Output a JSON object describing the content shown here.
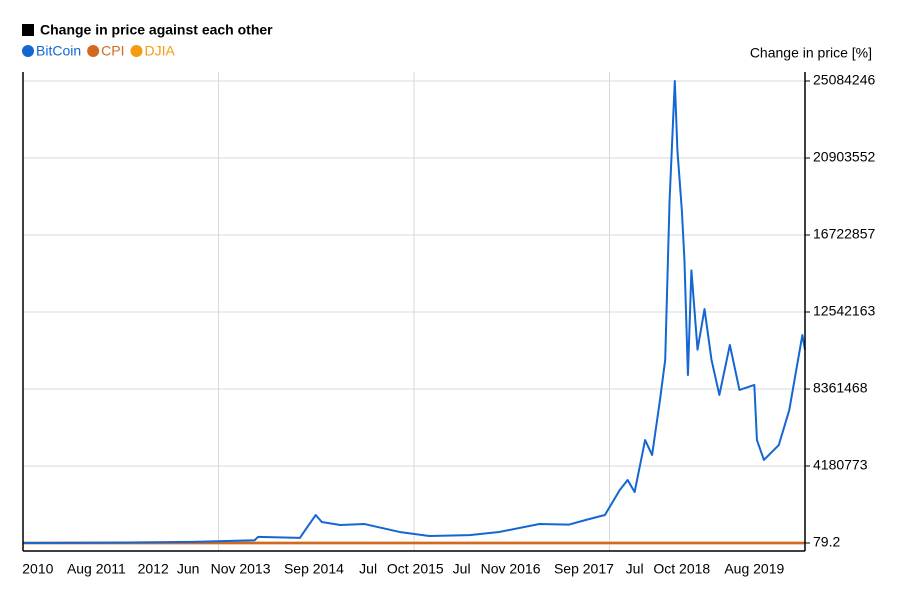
{
  "chart_data": {
    "type": "line",
    "title": "Change in price against each other",
    "y_axis_label": "Change in price [%]",
    "x": [
      2010.55,
      2011.5,
      2012.5,
      2013.2,
      2013.24,
      2013.72,
      2013.78,
      2013.9,
      2013.97,
      2014.18,
      2014.46,
      2014.86,
      2015.2,
      2015.66,
      2016.0,
      2016.46,
      2016.8,
      2016.99,
      2017.21,
      2017.38,
      2017.47,
      2017.55,
      2017.67,
      2017.75,
      2017.84,
      2017.9,
      2017.95,
      2018.01,
      2018.04,
      2018.09,
      2018.12,
      2018.16,
      2018.2,
      2018.27,
      2018.35,
      2018.43,
      2018.52,
      2018.64,
      2018.75,
      2018.92,
      2018.95,
      2019.03,
      2019.2,
      2019.32,
      2019.44,
      2019.47,
      2019.5
    ],
    "series": [
      {
        "name": "BitCoin",
        "color": "#1466d2",
        "values": [
          79.2,
          20000,
          60000,
          150000,
          330000,
          280000,
          700000,
          1520000,
          1140000,
          980000,
          1030000,
          600000,
          380000,
          430000,
          600000,
          1030000,
          1000000,
          1250000,
          1520000,
          2880000,
          3420000,
          2770000,
          5590000,
          4780000,
          7760000,
          9940000,
          18600000,
          25084246,
          21300000,
          18100000,
          15400000,
          9120000,
          14800000,
          10500000,
          12700000,
          9940000,
          8040000,
          10750000,
          8310000,
          8580000,
          5590000,
          4510000,
          5320000,
          7220000,
          10480000,
          11290000,
          10500000
        ]
      },
      {
        "name": "CPI",
        "color": "#d2691e",
        "values": [
          0,
          3,
          5,
          7,
          7,
          8,
          8,
          8,
          8,
          9,
          9,
          9,
          9,
          9,
          10,
          10,
          11,
          11,
          12,
          12,
          12,
          12,
          13,
          13,
          13,
          13,
          13,
          13,
          14,
          14,
          14,
          14,
          14,
          15,
          15,
          15,
          15,
          15,
          16,
          16,
          16,
          16,
          16,
          17,
          17,
          17,
          17
        ]
      },
      {
        "name": "DJIA",
        "color": "#f39c12",
        "values": [
          0,
          20,
          30,
          45,
          45,
          55,
          55,
          60,
          62,
          60,
          65,
          70,
          72,
          60,
          65,
          75,
          80,
          95,
          110,
          115,
          117,
          120,
          125,
          130,
          135,
          140,
          142,
          160,
          150,
          140,
          135,
          130,
          132,
          135,
          140,
          145,
          150,
          155,
          160,
          145,
          135,
          140,
          150,
          155,
          150,
          152,
          155
        ]
      }
    ],
    "xlim": [
      2010.55,
      2019.5
    ],
    "xticks": [
      {
        "value": 2010.72,
        "label": "2010"
      },
      {
        "value": 2011.39,
        "label": "Aug 2011"
      },
      {
        "value": 2012.04,
        "label": "2012"
      },
      {
        "value": 2012.44,
        "label": "Jun"
      },
      {
        "value": 2013.04,
        "label": "Nov 2013"
      },
      {
        "value": 2013.88,
        "label": "Sep 2014"
      },
      {
        "value": 2014.5,
        "label": "Jul"
      },
      {
        "value": 2015.04,
        "label": "Oct 2015"
      },
      {
        "value": 2015.57,
        "label": "Jul"
      },
      {
        "value": 2016.13,
        "label": "Nov 2016"
      },
      {
        "value": 2016.97,
        "label": "Sep 2017"
      },
      {
        "value": 2017.55,
        "label": "Jul"
      },
      {
        "value": 2018.09,
        "label": "Oct 2018"
      },
      {
        "value": 2018.92,
        "label": "Aug 2019"
      }
    ],
    "ylim": [
      -434000,
      25573000
    ],
    "yticks": [
      79.2,
      4180773,
      8361468,
      12542163,
      16722857,
      20903552,
      25084246
    ],
    "grid": true
  }
}
